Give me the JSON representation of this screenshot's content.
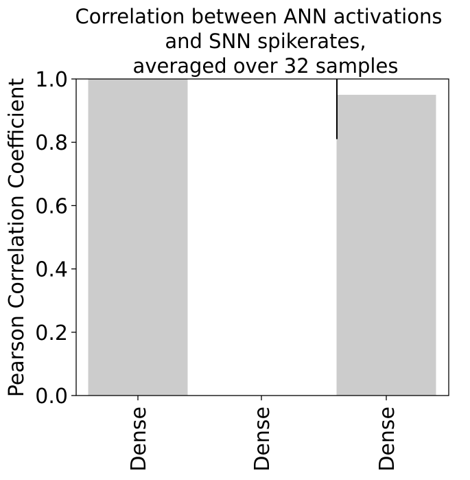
{
  "chart_data": {
    "type": "bar",
    "title_lines": [
      "Correlation between ANN activations",
      "and SNN spikerates,",
      "averaged over 32 samples"
    ],
    "ylabel": "Pearson Correlation Coefficient",
    "xlabel": "",
    "ylim": [
      0,
      1
    ],
    "yticks": [
      "0.0",
      "0.2",
      "0.4",
      "0.6",
      "0.8",
      "1.0"
    ],
    "categories": [
      "Dense",
      "Dense",
      "Dense"
    ],
    "values": [
      1.0,
      0.0,
      0.95
    ],
    "errors": [
      0.0,
      0.0,
      0.14
    ],
    "bar_color": "#cccccc",
    "grid": false,
    "legend": "none"
  }
}
